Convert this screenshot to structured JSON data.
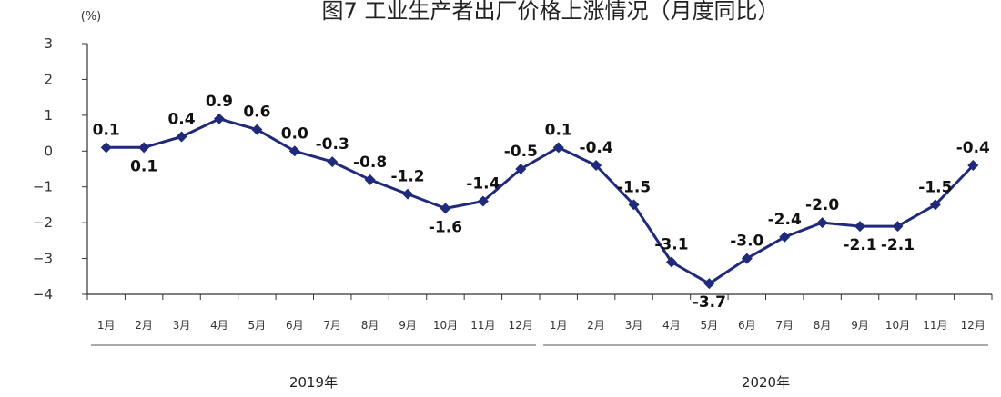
{
  "chart_data": {
    "type": "line",
    "title": "图7   工业生产者出厂价格上涨情况（月度同比）",
    "unit": "(%)",
    "ylim": [
      -4,
      3
    ],
    "yticks": [
      3,
      2,
      1,
      0,
      -1,
      -2,
      -3,
      -4
    ],
    "categories": [
      "1月",
      "2月",
      "3月",
      "4月",
      "5月",
      "6月",
      "7月",
      "8月",
      "9月",
      "10月",
      "11月",
      "12月",
      "1月",
      "2月",
      "3月",
      "4月",
      "5月",
      "6月",
      "7月",
      "8月",
      "9月",
      "10月",
      "11月",
      "12月"
    ],
    "x_groups": [
      {
        "label": "2019年",
        "start": 0,
        "end": 11
      },
      {
        "label": "2020年",
        "start": 12,
        "end": 23
      }
    ],
    "series": [
      {
        "color": "#1f2a7a",
        "values": [
          0.1,
          0.1,
          0.4,
          0.9,
          0.6,
          0.0,
          -0.3,
          -0.8,
          -1.2,
          -1.6,
          -1.4,
          -0.5,
          0.1,
          -0.4,
          -1.5,
          -3.1,
          -3.7,
          -3.0,
          -2.4,
          -2.0,
          -2.1,
          -2.1,
          -1.5,
          -0.4
        ]
      }
    ],
    "data_labels": [
      "0.1",
      "0.1",
      "0.4",
      "0.9",
      "0.6",
      "0.0",
      "-0.3",
      "-0.8",
      "-1.2",
      "-1.6",
      "-1.4",
      "-0.5",
      "0.1",
      "-0.4",
      "-1.5",
      "-3.1",
      "-3.7",
      "-3.0",
      "-2.4",
      "-2.0",
      "-2.1",
      "-2.1",
      "-1.5",
      "-0.4"
    ],
    "grid": false,
    "legend": "none"
  }
}
